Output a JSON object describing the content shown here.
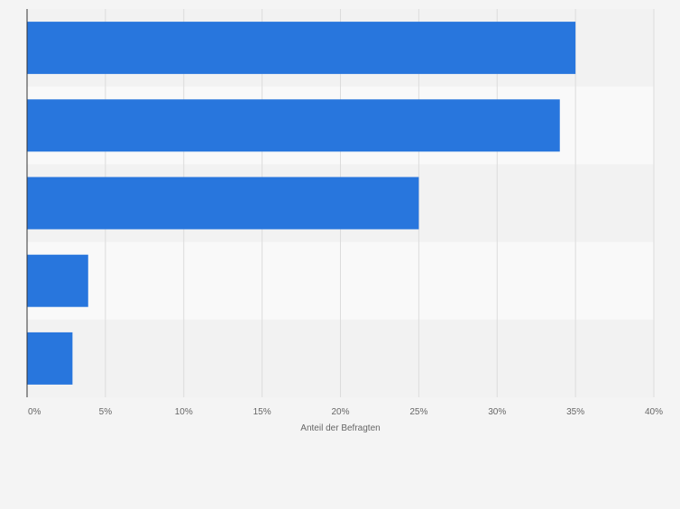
{
  "chart_data": {
    "type": "bar",
    "orientation": "horizontal",
    "categories": [
      "",
      "",
      "",
      "",
      ""
    ],
    "values": [
      35,
      34,
      25,
      3.9,
      2.9
    ],
    "unit": "%",
    "xlabel": "Anteil der Befragten",
    "ylabel": "",
    "xlim": [
      0,
      40
    ],
    "xticks": [
      "0%",
      "5%",
      "10%",
      "15%",
      "20%",
      "25%",
      "30%",
      "35%",
      "40%"
    ],
    "grid": "vertical",
    "legend": "none",
    "colors": {
      "bar": "#2876dd",
      "band_dark": "#f2f2f2",
      "band_light": "#f9f9f9",
      "grid": "#dcdcdc",
      "axis": "#333333",
      "tick_text": "#666666",
      "background": "#f4f4f4"
    }
  }
}
